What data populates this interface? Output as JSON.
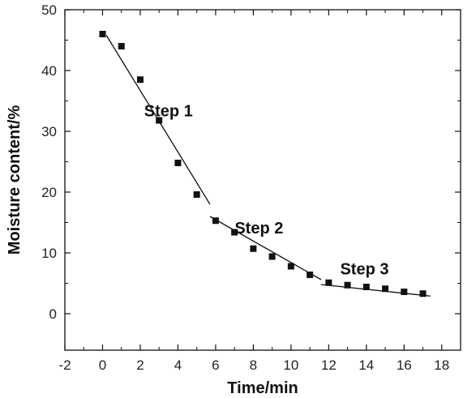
{
  "chart_data": {
    "type": "scatter",
    "title": "",
    "xlabel": "Time/min",
    "ylabel": "Moisture content/%",
    "xlim": [
      -2,
      19
    ],
    "ylim": [
      -6,
      50
    ],
    "xticks": [
      -2,
      0,
      2,
      4,
      6,
      8,
      10,
      12,
      14,
      16,
      18
    ],
    "yticks": [
      0,
      10,
      20,
      30,
      40,
      50
    ],
    "grid": false,
    "legend": "none",
    "marker_color": "#111111",
    "series": [
      {
        "x": [
          0,
          1,
          2,
          3,
          4,
          5,
          6,
          7,
          8,
          9,
          10,
          11,
          12,
          13,
          14,
          15,
          16,
          17
        ],
        "y": [
          46.0,
          44.0,
          38.5,
          31.8,
          24.8,
          19.6,
          15.3,
          13.4,
          10.7,
          9.4,
          7.8,
          6.4,
          5.1,
          4.7,
          4.4,
          4.1,
          3.6,
          3.3
        ]
      }
    ],
    "fit_lines": [
      {
        "x": [
          0.2,
          5.7
        ],
        "y": [
          45.8,
          18.0
        ]
      },
      {
        "x": [
          5.7,
          11.6
        ],
        "y": [
          16.0,
          5.6
        ]
      },
      {
        "x": [
          11.6,
          17.4
        ],
        "y": [
          4.8,
          2.9
        ]
      }
    ],
    "annotations": [
      {
        "text": "Step 1",
        "x": 3.5,
        "y": 32.5
      },
      {
        "text": "Step 2",
        "x": 8.3,
        "y": 13.2
      },
      {
        "text": "Step 3",
        "x": 13.9,
        "y": 6.5
      }
    ]
  }
}
